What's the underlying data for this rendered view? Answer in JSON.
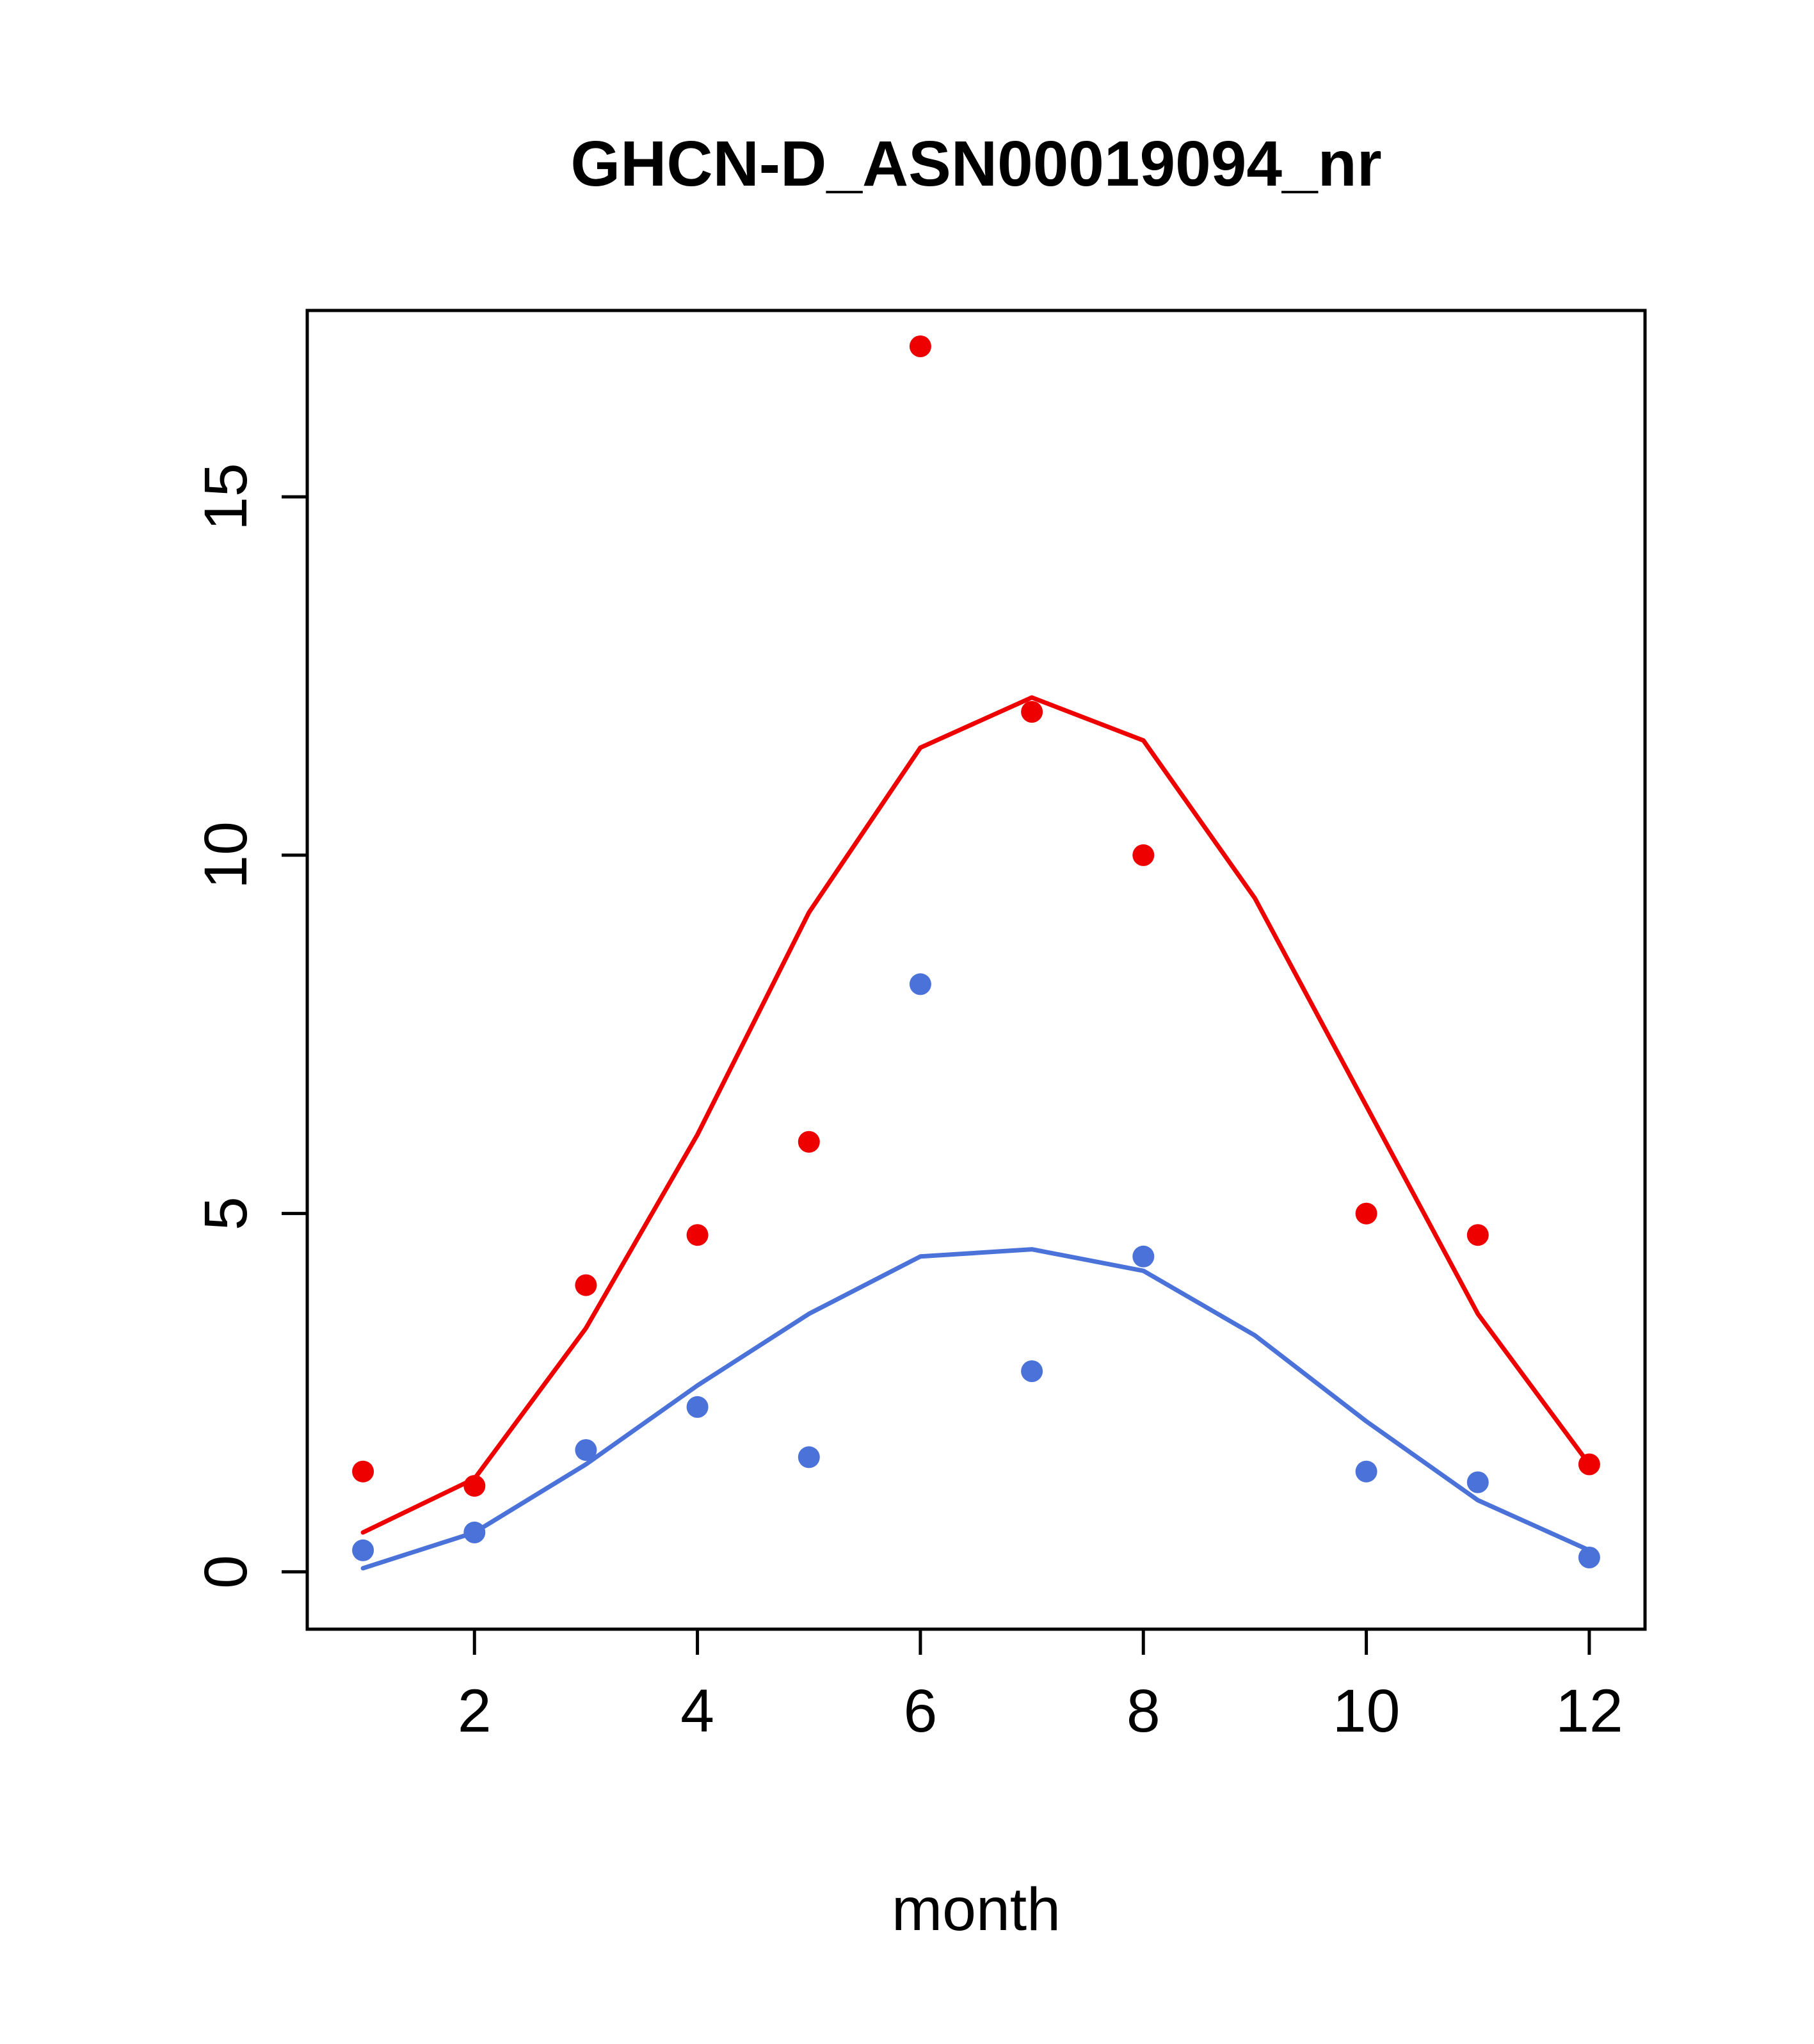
{
  "chart_data": {
    "type": "scatter",
    "title": "GHCN-D_ASN00019094_nr",
    "xlabel": "month",
    "ylabel": "",
    "xlim": [
      0.5,
      12.5
    ],
    "ylim": [
      -0.8,
      17.6
    ],
    "x_ticks": [
      2,
      4,
      6,
      8,
      10,
      12
    ],
    "y_ticks": [
      0,
      5,
      10,
      15
    ],
    "grid": false,
    "legend": "none",
    "colors": {
      "red": "#ee0000",
      "blue": "#4a72d9",
      "axis": "#000000"
    },
    "series": [
      {
        "name": "red-trend-line",
        "kind": "line",
        "color": "#ee0000",
        "x": [
          1,
          2,
          3,
          4,
          5,
          6,
          7,
          8,
          9,
          10,
          11,
          12
        ],
        "y": [
          0.55,
          1.3,
          3.4,
          6.1,
          9.2,
          11.5,
          12.2,
          11.6,
          9.4,
          6.5,
          3.6,
          1.5
        ]
      },
      {
        "name": "blue-trend-line",
        "kind": "line",
        "color": "#4a72d9",
        "x": [
          1,
          2,
          3,
          4,
          5,
          6,
          7,
          8,
          9,
          10,
          11,
          12
        ],
        "y": [
          0.05,
          0.55,
          1.5,
          2.6,
          3.6,
          4.4,
          4.5,
          4.2,
          3.3,
          2.1,
          1.0,
          0.3
        ]
      },
      {
        "name": "red-points",
        "kind": "points",
        "color": "#ee0000",
        "x": [
          1,
          2,
          3,
          4,
          5,
          6,
          7,
          8,
          10,
          11,
          12
        ],
        "y": [
          1.4,
          1.2,
          4.0,
          4.7,
          6.0,
          17.1,
          12.0,
          10.0,
          5.0,
          4.7,
          1.5
        ]
      },
      {
        "name": "blue-points",
        "kind": "points",
        "color": "#4a72d9",
        "x": [
          1,
          2,
          3,
          4,
          5,
          6,
          7,
          8,
          10,
          11,
          12
        ],
        "y": [
          0.3,
          0.55,
          1.7,
          2.3,
          1.6,
          8.2,
          2.8,
          4.4,
          1.4,
          1.25,
          0.2
        ]
      }
    ]
  }
}
